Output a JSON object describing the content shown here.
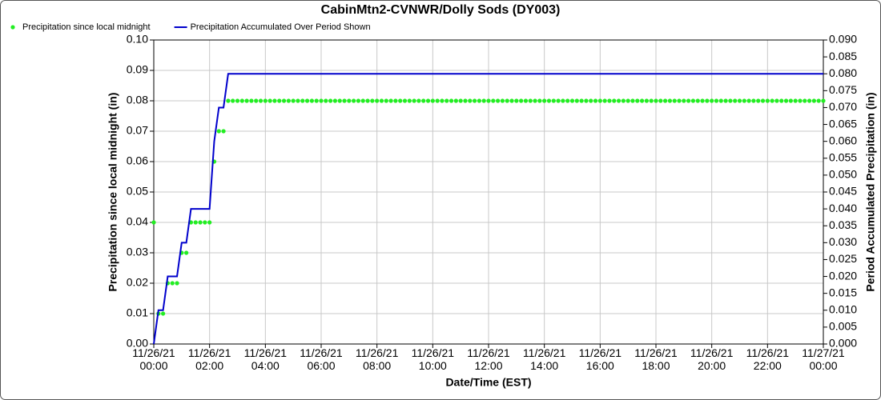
{
  "chart_data": {
    "type": "line",
    "title": "CabinMtn2-CVNWR/Dolly Sods (DY003)",
    "xlabel": "Date/Time (EST)",
    "ylabel": "Precipitation since local midnight (in)",
    "y2label": "Period Accumulated Precipitation (in)",
    "grid": true,
    "legend": "top-left",
    "xlim": [
      "11/26/21 00:00",
      "11/27/21 00:00"
    ],
    "xticks": [
      "11/26/21 00:00",
      "11/26/21 02:00",
      "11/26/21 04:00",
      "11/26/21 06:00",
      "11/26/21 08:00",
      "11/26/21 10:00",
      "11/26/21 12:00",
      "11/26/21 14:00",
      "11/26/21 16:00",
      "11/26/21 18:00",
      "11/26/21 20:00",
      "11/26/21 22:00",
      "11/27/21 00:00"
    ],
    "ylim": [
      0,
      0.1
    ],
    "yticks": [
      {
        "value": 0,
        "label": "0.00"
      },
      {
        "value": 0.01,
        "label": "0.01"
      },
      {
        "value": 0.02,
        "label": "0.02"
      },
      {
        "value": 0.03,
        "label": "0.03"
      },
      {
        "value": 0.04,
        "label": "0.04"
      },
      {
        "value": 0.05,
        "label": "0.05"
      },
      {
        "value": 0.06,
        "label": "0.06"
      },
      {
        "value": 0.07,
        "label": "0.07"
      },
      {
        "value": 0.08,
        "label": "0.08"
      },
      {
        "value": 0.09,
        "label": "0.09"
      },
      {
        "value": 0.1,
        "label": "0.10"
      }
    ],
    "y2lim": [
      0,
      0.09
    ],
    "y2ticks": [
      {
        "value": 0,
        "label": "0.000"
      },
      {
        "value": 0.005,
        "label": "0.005"
      },
      {
        "value": 0.01,
        "label": "0.010"
      },
      {
        "value": 0.015,
        "label": "0.015"
      },
      {
        "value": 0.02,
        "label": "0.020"
      },
      {
        "value": 0.025,
        "label": "0.025"
      },
      {
        "value": 0.03,
        "label": "0.030"
      },
      {
        "value": 0.035,
        "label": "0.035"
      },
      {
        "value": 0.04,
        "label": "0.040"
      },
      {
        "value": 0.045,
        "label": "0.045"
      },
      {
        "value": 0.05,
        "label": "0.050"
      },
      {
        "value": 0.055,
        "label": "0.055"
      },
      {
        "value": 0.06,
        "label": "0.060"
      },
      {
        "value": 0.065,
        "label": "0.065"
      },
      {
        "value": 0.07,
        "label": "0.070"
      },
      {
        "value": 0.075,
        "label": "0.075"
      },
      {
        "value": 0.08,
        "label": "0.080"
      },
      {
        "value": 0.085,
        "label": "0.085"
      },
      {
        "value": 0.09,
        "label": "0.090"
      }
    ],
    "x": [
      "11/26/21 00:00",
      "11/26/21 00:10",
      "11/26/21 00:20",
      "11/26/21 00:30",
      "11/26/21 00:40",
      "11/26/21 00:50",
      "11/26/21 01:00",
      "11/26/21 01:10",
      "11/26/21 01:20",
      "11/26/21 01:30",
      "11/26/21 01:40",
      "11/26/21 01:50",
      "11/26/21 02:00",
      "11/26/21 02:10",
      "11/26/21 02:20",
      "11/26/21 02:30",
      "11/26/21 02:40",
      "11/26/21 02:50",
      "11/26/21 03:00",
      "11/26/21 03:10",
      "11/26/21 03:20",
      "11/26/21 03:30",
      "11/26/21 03:40",
      "11/26/21 03:50",
      "11/26/21 04:00",
      "11/26/21 04:10",
      "11/26/21 04:20",
      "11/26/21 04:30",
      "11/26/21 04:40",
      "11/26/21 04:50",
      "11/26/21 05:00",
      "11/26/21 05:10",
      "11/26/21 05:20",
      "11/26/21 05:30",
      "11/26/21 05:40",
      "11/26/21 05:50",
      "11/26/21 06:00",
      "11/26/21 06:10",
      "11/26/21 06:20",
      "11/26/21 06:30",
      "11/26/21 06:40",
      "11/26/21 06:50",
      "11/26/21 07:00",
      "11/26/21 07:10",
      "11/26/21 07:20",
      "11/26/21 07:30",
      "11/26/21 07:40",
      "11/26/21 07:50",
      "11/26/21 08:00",
      "11/26/21 08:10",
      "11/26/21 08:20",
      "11/26/21 08:30",
      "11/26/21 08:40",
      "11/26/21 08:50",
      "11/26/21 09:00",
      "11/26/21 09:10",
      "11/26/21 09:20",
      "11/26/21 09:30",
      "11/26/21 09:40",
      "11/26/21 09:50",
      "11/26/21 10:00",
      "11/26/21 10:10",
      "11/26/21 10:20",
      "11/26/21 10:30",
      "11/26/21 10:40",
      "11/26/21 10:50",
      "11/26/21 11:00",
      "11/26/21 11:10",
      "11/26/21 11:20",
      "11/26/21 11:30",
      "11/26/21 11:40",
      "11/26/21 11:50",
      "11/26/21 12:00",
      "11/26/21 12:10",
      "11/26/21 12:20",
      "11/26/21 12:30",
      "11/26/21 12:40",
      "11/26/21 12:50",
      "11/26/21 13:00",
      "11/26/21 13:10",
      "11/26/21 13:20",
      "11/26/21 13:30",
      "11/26/21 13:40",
      "11/26/21 13:50",
      "11/26/21 14:00",
      "11/26/21 14:10",
      "11/26/21 14:20",
      "11/26/21 14:30",
      "11/26/21 14:40",
      "11/26/21 14:50",
      "11/26/21 15:00",
      "11/26/21 15:10",
      "11/26/21 15:20",
      "11/26/21 15:30",
      "11/26/21 15:40",
      "11/26/21 15:50",
      "11/26/21 16:00",
      "11/26/21 16:10",
      "11/26/21 16:20",
      "11/26/21 16:30",
      "11/26/21 16:40",
      "11/26/21 16:50",
      "11/26/21 17:00",
      "11/26/21 17:10",
      "11/26/21 17:20",
      "11/26/21 17:30",
      "11/26/21 17:40",
      "11/26/21 17:50",
      "11/26/21 18:00",
      "11/26/21 18:10",
      "11/26/21 18:20",
      "11/26/21 18:30",
      "11/26/21 18:40",
      "11/26/21 18:50",
      "11/26/21 19:00",
      "11/26/21 19:10",
      "11/26/21 19:20",
      "11/26/21 19:30",
      "11/26/21 19:40",
      "11/26/21 19:50",
      "11/26/21 20:00",
      "11/26/21 20:10",
      "11/26/21 20:20",
      "11/26/21 20:30",
      "11/26/21 20:40",
      "11/26/21 20:50",
      "11/26/21 21:00",
      "11/26/21 21:10",
      "11/26/21 21:20",
      "11/26/21 21:30",
      "11/26/21 21:40",
      "11/26/21 21:50",
      "11/26/21 22:00",
      "11/26/21 22:10",
      "11/26/21 22:20",
      "11/26/21 22:30",
      "11/26/21 22:40",
      "11/26/21 22:50",
      "11/26/21 23:00",
      "11/26/21 23:10",
      "11/26/21 23:20",
      "11/26/21 23:30",
      "11/26/21 23:40",
      "11/26/21 23:50",
      "11/27/21 00:00"
    ],
    "series": [
      {
        "name": "Precipitation since local midnight",
        "type": "scatter",
        "color": "#22ee22",
        "axis": "y",
        "values": [
          0.04,
          0.01,
          0.01,
          0.02,
          0.02,
          0.02,
          0.03,
          0.03,
          0.04,
          0.04,
          0.04,
          0.04,
          0.04,
          0.06,
          0.07,
          0.07,
          0.08,
          0.08,
          0.08,
          0.08,
          0.08,
          0.08,
          0.08,
          0.08,
          0.08,
          0.08,
          0.08,
          0.08,
          0.08,
          0.08,
          0.08,
          0.08,
          0.08,
          0.08,
          0.08,
          0.08,
          0.08,
          0.08,
          0.08,
          0.08,
          0.08,
          0.08,
          0.08,
          0.08,
          0.08,
          0.08,
          0.08,
          0.08,
          0.08,
          0.08,
          0.08,
          0.08,
          0.08,
          0.08,
          0.08,
          0.08,
          0.08,
          0.08,
          0.08,
          0.08,
          0.08,
          0.08,
          0.08,
          0.08,
          0.08,
          0.08,
          0.08,
          0.08,
          0.08,
          0.08,
          0.08,
          0.08,
          0.08,
          0.08,
          0.08,
          0.08,
          0.08,
          0.08,
          0.08,
          0.08,
          0.08,
          0.08,
          0.08,
          0.08,
          0.08,
          0.08,
          0.08,
          0.08,
          0.08,
          0.08,
          0.08,
          0.08,
          0.08,
          0.08,
          0.08,
          0.08,
          0.08,
          0.08,
          0.08,
          0.08,
          0.08,
          0.08,
          0.08,
          0.08,
          0.08,
          0.08,
          0.08,
          0.08,
          0.08,
          0.08,
          0.08,
          0.08,
          0.08,
          0.08,
          0.08,
          0.08,
          0.08,
          0.08,
          0.08,
          0.08,
          0.08,
          0.08,
          0.08,
          0.08,
          0.08,
          0.08,
          0.08,
          0.08,
          0.08,
          0.08,
          0.08,
          0.08,
          0.08,
          0.08,
          0.08,
          0.08,
          0.08,
          0.08,
          0.08,
          0.08,
          0.08,
          0.08,
          0.08,
          0.08,
          0.08
        ]
      },
      {
        "name": "Precipitation Accumulated Over Period Shown",
        "type": "line",
        "color": "#0000cc",
        "axis": "y2",
        "values": [
          0,
          0.01,
          0.01,
          0.02,
          0.02,
          0.02,
          0.03,
          0.03,
          0.04,
          0.04,
          0.04,
          0.04,
          0.04,
          0.06,
          0.07,
          0.07,
          0.08,
          0.08,
          0.08,
          0.08,
          0.08,
          0.08,
          0.08,
          0.08,
          0.08,
          0.08,
          0.08,
          0.08,
          0.08,
          0.08,
          0.08,
          0.08,
          0.08,
          0.08,
          0.08,
          0.08,
          0.08,
          0.08,
          0.08,
          0.08,
          0.08,
          0.08,
          0.08,
          0.08,
          0.08,
          0.08,
          0.08,
          0.08,
          0.08,
          0.08,
          0.08,
          0.08,
          0.08,
          0.08,
          0.08,
          0.08,
          0.08,
          0.08,
          0.08,
          0.08,
          0.08,
          0.08,
          0.08,
          0.08,
          0.08,
          0.08,
          0.08,
          0.08,
          0.08,
          0.08,
          0.08,
          0.08,
          0.08,
          0.08,
          0.08,
          0.08,
          0.08,
          0.08,
          0.08,
          0.08,
          0.08,
          0.08,
          0.08,
          0.08,
          0.08,
          0.08,
          0.08,
          0.08,
          0.08,
          0.08,
          0.08,
          0.08,
          0.08,
          0.08,
          0.08,
          0.08,
          0.08,
          0.08,
          0.08,
          0.08,
          0.08,
          0.08,
          0.08,
          0.08,
          0.08,
          0.08,
          0.08,
          0.08,
          0.08,
          0.08,
          0.08,
          0.08,
          0.08,
          0.08,
          0.08,
          0.08,
          0.08,
          0.08,
          0.08,
          0.08,
          0.08,
          0.08,
          0.08,
          0.08,
          0.08,
          0.08,
          0.08,
          0.08,
          0.08,
          0.08,
          0.08,
          0.08,
          0.08,
          0.08,
          0.08,
          0.08,
          0.08,
          0.08,
          0.08,
          0.08,
          0.08,
          0.08,
          0.08,
          0.08,
          0.08
        ]
      }
    ]
  }
}
